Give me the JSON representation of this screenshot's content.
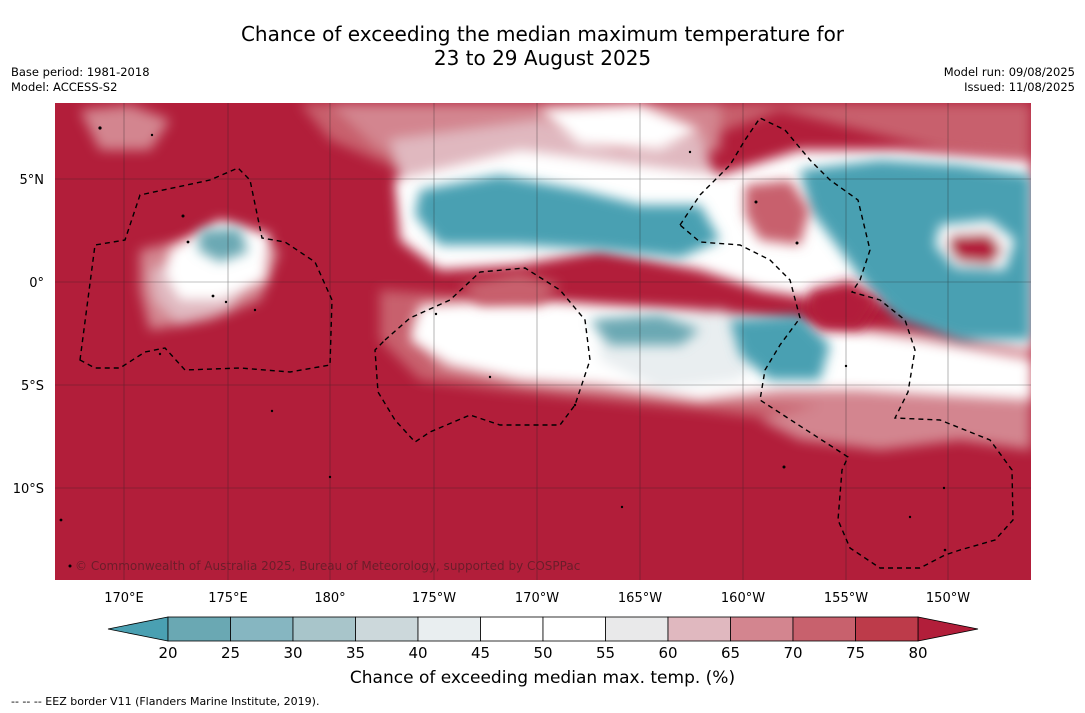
{
  "title": {
    "line1": "Chance of exceeding the median maximum temperature for",
    "line2": "23 to 29 August 2025"
  },
  "meta": {
    "base_period": "Base period: 1981-2018",
    "model": "Model: ACCESS-S2",
    "model_run": "Model run: 09/08/2025",
    "issued": "Issued: 11/08/2025"
  },
  "map": {
    "copyright": "© Commonwealth of Australia 2025, Bureau of Meteorology, supported by COSPPac",
    "lat_ticks": [
      "5°N",
      "0°",
      "5°S",
      "10°S"
    ],
    "lon_ticks": [
      "170°E",
      "175°E",
      "180°",
      "175°W",
      "170°W",
      "165°W",
      "160°W",
      "155°W",
      "150°W"
    ]
  },
  "colorbar": {
    "ticks": [
      "20",
      "25",
      "30",
      "35",
      "40",
      "45",
      "50",
      "55",
      "60",
      "65",
      "70",
      "75",
      "80"
    ],
    "colors": [
      "#6aa8b3",
      "#86b6c1",
      "#a8c5ca",
      "#ccd8db",
      "#e9eef0",
      "#ffffff",
      "#ffffff",
      "#e9e9ea",
      "#e0b8bf",
      "#d3858f",
      "#c8616d",
      "#bd3b4a"
    ],
    "under_color": "#4aa0b2",
    "over_color": "#b21e3a",
    "label": "Chance of exceeding median max. temp. (%)"
  },
  "legend_note": "--  --  -- EEZ border V11 (Flanders Marine Institute, 2019)."
}
